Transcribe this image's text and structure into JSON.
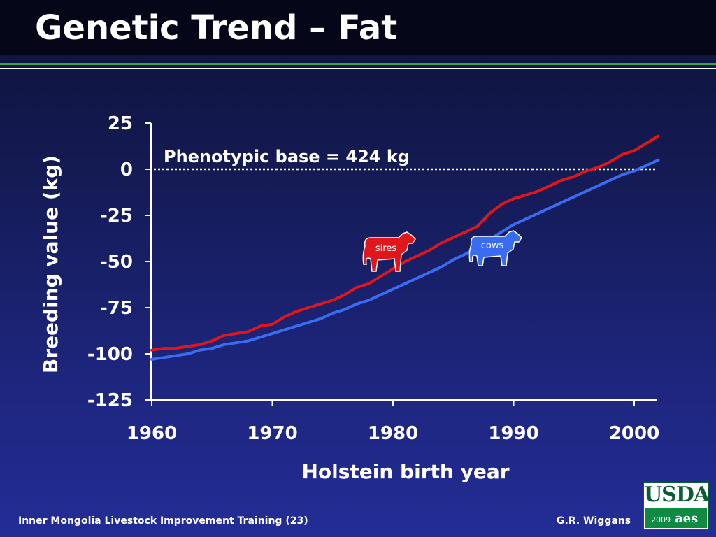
{
  "slide": {
    "title": "Genetic Trend – Fat",
    "footer_left": "Inner Mongolia Livestock Improvement Training (23)",
    "footer_right": "G.R. Wiggans",
    "logo": {
      "name": "USDA",
      "year": "2009",
      "mark": "aes"
    }
  },
  "colors": {
    "sires": "#e0161a",
    "cows": "#3a6cf2",
    "axis": "#ffffff",
    "title_bar": "#050718",
    "green_rule": "#2fa84f"
  },
  "chart_data": {
    "type": "line",
    "title": "",
    "xlabel": "Holstein birth year",
    "ylabel": "Breeding value (kg)",
    "xlim": [
      1960,
      2002
    ],
    "ylim": [
      -125,
      25
    ],
    "x_ticks": [
      "1960",
      "1970",
      "1980",
      "1990",
      "2000"
    ],
    "y_ticks": [
      "25",
      "0",
      "-25",
      "-50",
      "-75",
      "-100",
      "-125"
    ],
    "grid": false,
    "legend": "icon labels on chart",
    "annotation": {
      "text": "Phenotypic base = 424 kg",
      "y": 0,
      "style": "dotted"
    },
    "x": [
      1960,
      1961,
      1962,
      1963,
      1964,
      1965,
      1966,
      1967,
      1968,
      1969,
      1970,
      1971,
      1972,
      1973,
      1974,
      1975,
      1976,
      1977,
      1978,
      1979,
      1980,
      1981,
      1982,
      1983,
      1984,
      1985,
      1986,
      1987,
      1988,
      1989,
      1990,
      1991,
      1992,
      1993,
      1994,
      1995,
      1996,
      1997,
      1998,
      1999,
      2000,
      2001,
      2002
    ],
    "series": [
      {
        "name": "sires",
        "values": [
          -98,
          -97,
          -97,
          -96,
          -95,
          -93,
          -90,
          -89,
          -88,
          -85,
          -84,
          -80,
          -77,
          -75,
          -73,
          -71,
          -68,
          -64,
          -62,
          -58,
          -54,
          -50,
          -47,
          -44,
          -40,
          -37,
          -34,
          -31,
          -24,
          -19,
          -16,
          -14,
          -12,
          -9,
          -6,
          -4,
          -1,
          1,
          4,
          8,
          10,
          14,
          18
        ]
      },
      {
        "name": "cows",
        "values": [
          -103,
          -102,
          -101,
          -100,
          -98,
          -97,
          -95,
          -94,
          -93,
          -91,
          -89,
          -87,
          -85,
          -83,
          -81,
          -78,
          -76,
          -73,
          -71,
          -68,
          -65,
          -62,
          -59,
          -56,
          -53,
          -49,
          -46,
          -42,
          -38,
          -34,
          -30,
          -27,
          -24,
          -21,
          -18,
          -15,
          -12,
          -9,
          -6,
          -3,
          -1,
          2,
          5
        ]
      }
    ]
  }
}
